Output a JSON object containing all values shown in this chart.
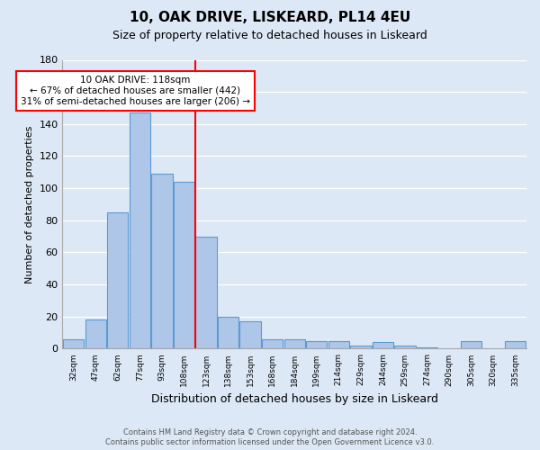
{
  "title1": "10, OAK DRIVE, LISKEARD, PL14 4EU",
  "title2": "Size of property relative to detached houses in Liskeard",
  "xlabel": "Distribution of detached houses by size in Liskeard",
  "ylabel": "Number of detached properties",
  "footnote1": "Contains HM Land Registry data © Crown copyright and database right 2024.",
  "footnote2": "Contains public sector information licensed under the Open Government Licence v3.0.",
  "categories": [
    "32sqm",
    "47sqm",
    "62sqm",
    "77sqm",
    "93sqm",
    "108sqm",
    "123sqm",
    "138sqm",
    "153sqm",
    "168sqm",
    "184sqm",
    "199sqm",
    "214sqm",
    "229sqm",
    "244sqm",
    "259sqm",
    "274sqm",
    "290sqm",
    "305sqm",
    "320sqm",
    "335sqm"
  ],
  "values": [
    6,
    18,
    85,
    147,
    109,
    104,
    70,
    20,
    17,
    6,
    6,
    5,
    5,
    2,
    4,
    2,
    1,
    0,
    5,
    0,
    5
  ],
  "bar_color": "#aec6e8",
  "bar_edge_color": "#5b9bd5",
  "vline_color": "red",
  "vline_pos": 6.0,
  "annotation_title": "10 OAK DRIVE: 118sqm",
  "annotation_line1": "← 67% of detached houses are smaller (442)",
  "annotation_line2": "31% of semi-detached houses are larger (206) →",
  "annotation_box_color": "white",
  "annotation_box_edge": "red",
  "background_color": "#dce8f5",
  "ylim": [
    0,
    180
  ],
  "yticks": [
    0,
    20,
    40,
    60,
    80,
    100,
    120,
    140,
    160,
    180
  ]
}
